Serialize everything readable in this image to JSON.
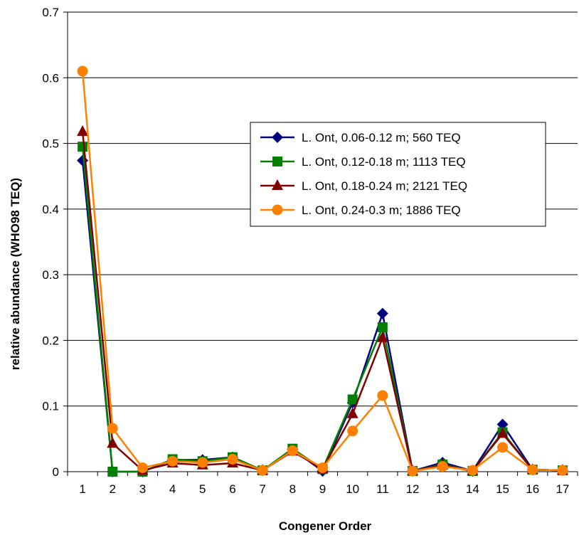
{
  "chart_data": {
    "type": "line",
    "title": "",
    "xlabel": "Congener Order",
    "ylabel": "relative abundance (WHO98 TEQ)",
    "categories": [
      "1",
      "2",
      "3",
      "4",
      "5",
      "6",
      "7",
      "8",
      "9",
      "10",
      "11",
      "12",
      "13",
      "14",
      "15",
      "16",
      "17"
    ],
    "ylim": [
      0,
      0.7
    ],
    "yticks": [
      0,
      0.1,
      0.2,
      0.3,
      0.4,
      0.5,
      0.6,
      0.7
    ],
    "ytick_labels": [
      "0",
      "0.1",
      "0.2",
      "0.3",
      "0.4",
      "0.5",
      "0.6",
      "0.7"
    ],
    "grid": "horizontal",
    "legend_position": "right-middle",
    "series": [
      {
        "name": "L. Ont, 0.06-0.12 m; 560 TEQ",
        "color": "#000080",
        "marker": "diamond",
        "values": [
          0.474,
          0.0,
          0.0,
          0.018,
          0.018,
          0.022,
          0.002,
          0.034,
          0.001,
          0.105,
          0.241,
          0.001,
          0.014,
          0.001,
          0.072,
          0.003,
          0.002
        ]
      },
      {
        "name": "L. Ont, 0.12-0.18 m; 1113 TEQ",
        "color": "#008000",
        "marker": "square",
        "values": [
          0.495,
          0.0,
          0.0,
          0.019,
          0.016,
          0.022,
          0.002,
          0.035,
          0.004,
          0.11,
          0.22,
          0.001,
          0.011,
          0.001,
          0.06,
          0.003,
          0.002
        ]
      },
      {
        "name": "L. Ont, 0.18-0.24 m; 2121 TEQ",
        "color": "#800000",
        "marker": "triangle",
        "values": [
          0.518,
          0.043,
          0.002,
          0.013,
          0.01,
          0.013,
          0.002,
          0.031,
          0.004,
          0.088,
          0.204,
          0.001,
          0.01,
          0.001,
          0.058,
          0.003,
          0.002
        ]
      },
      {
        "name": "L. Ont, 0.24-0.3 m; 1886 TEQ",
        "color": "#FF8000",
        "marker": "circle",
        "values": [
          0.61,
          0.066,
          0.006,
          0.016,
          0.014,
          0.019,
          0.002,
          0.032,
          0.006,
          0.062,
          0.116,
          0.001,
          0.008,
          0.002,
          0.037,
          0.003,
          0.002
        ]
      }
    ]
  }
}
